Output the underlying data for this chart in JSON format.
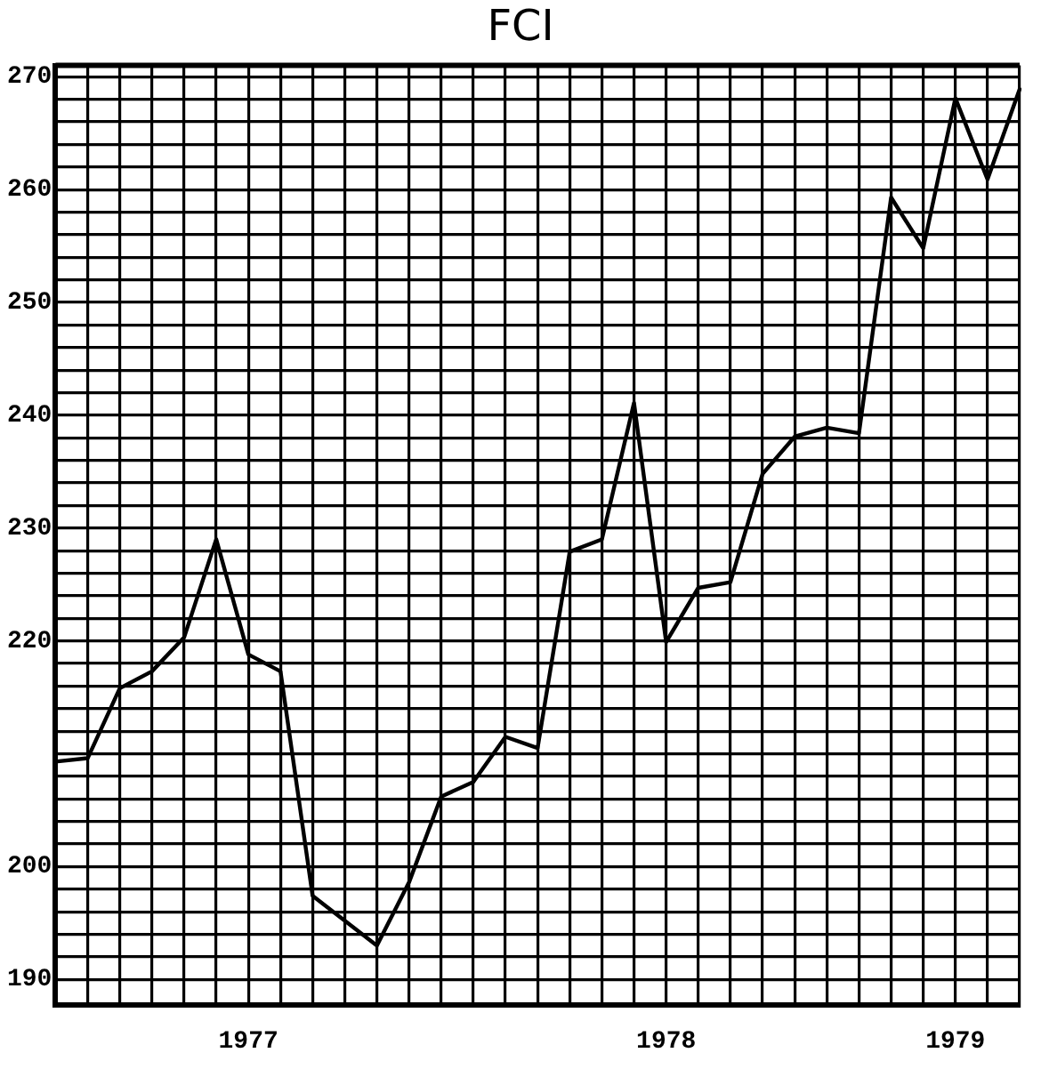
{
  "chart_data": {
    "type": "line",
    "title": "FCI",
    "categories": [
      null,
      null,
      null,
      null,
      null,
      null,
      "1977",
      null,
      null,
      null,
      null,
      null,
      null,
      null,
      null,
      null,
      null,
      null,
      null,
      "1978",
      null,
      null,
      null,
      null,
      null,
      null,
      null,
      null,
      "1979",
      null,
      null
    ],
    "series": [
      {
        "color": "#000000",
        "values": [
          209.3,
          209.6,
          215.8,
          217.3,
          220.3,
          229,
          218.8,
          217.3,
          197.4,
          195.2,
          193,
          198.6,
          206.2,
          207.5,
          211.5,
          210.5,
          227.9,
          229,
          241.1,
          219.9,
          224.7,
          225.2,
          234.8,
          238.1,
          238.9,
          238.4,
          259.3,
          254.8,
          268.1,
          260.9,
          268.9
        ]
      }
    ],
    "ylim": [
      187.7,
      271
    ],
    "yticks": [
      190,
      {
        "value": 192,
        "label": null
      },
      {
        "value": 194,
        "label": null
      },
      {
        "value": 196,
        "label": null
      },
      {
        "value": 198,
        "label": null
      },
      200,
      {
        "value": 202,
        "label": null
      },
      {
        "value": 204,
        "label": null
      },
      {
        "value": 206,
        "label": null
      },
      {
        "value": 208,
        "label": null
      },
      {
        "value": 210,
        "label": null
      },
      {
        "value": 212,
        "label": null
      },
      {
        "value": 214,
        "label": null
      },
      {
        "value": 216,
        "label": null
      },
      {
        "value": 218,
        "label": null
      },
      220,
      {
        "value": 222,
        "label": null
      },
      {
        "value": 224,
        "label": null
      },
      {
        "value": 226,
        "label": null
      },
      {
        "value": 228,
        "label": null
      },
      230,
      {
        "value": 232,
        "label": null
      },
      {
        "value": 234,
        "label": null
      },
      {
        "value": 236,
        "label": null
      },
      {
        "value": 238,
        "label": null
      },
      240,
      {
        "value": 242,
        "label": null
      },
      {
        "value": 244,
        "label": null
      },
      {
        "value": 246,
        "label": null
      },
      {
        "value": 248,
        "label": null
      },
      250,
      {
        "value": 252,
        "label": null
      },
      {
        "value": 254,
        "label": null
      },
      {
        "value": 256,
        "label": null
      },
      {
        "value": 258,
        "label": null
      },
      260,
      {
        "value": 262,
        "label": null
      },
      {
        "value": 264,
        "label": null
      },
      {
        "value": 266,
        "label": null
      },
      {
        "value": 268,
        "label": null
      },
      270
    ],
    "grid": true,
    "marker": "none",
    "line_style": "solid",
    "legend": false
  }
}
